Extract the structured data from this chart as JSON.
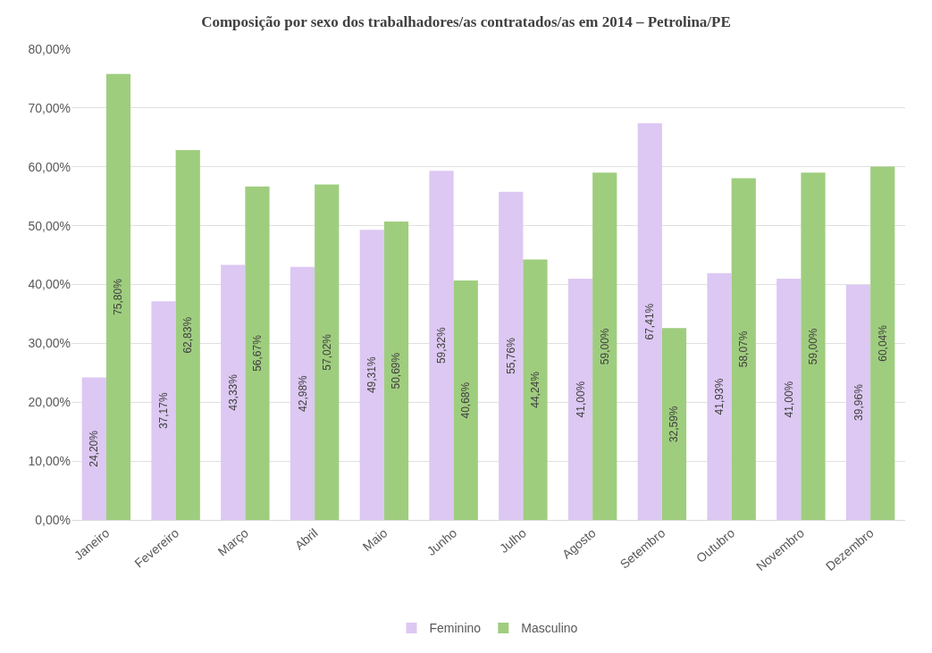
{
  "chart_data": {
    "type": "bar",
    "title": "Composição por sexo dos trabalhadores/as contratados/as em 2014 – Petrolina/PE",
    "categories": [
      "Janeiro",
      "Fevereiro",
      "Março",
      "Abril",
      "Maio",
      "Junho",
      "Julho",
      "Agosto",
      "Setembro",
      "Outubro",
      "Novembro",
      "Dezembro"
    ],
    "series": [
      {
        "name": "Feminino",
        "color": "#dcc8f2",
        "values": [
          24.2,
          37.17,
          43.33,
          42.98,
          49.31,
          59.32,
          55.76,
          41.0,
          67.41,
          41.93,
          41.0,
          39.96
        ],
        "value_labels": [
          "24,20%",
          "37,17%",
          "43,33%",
          "42,98%",
          "49,31%",
          "59,32%",
          "55,76%",
          "41,00%",
          "67,41%",
          "41,93%",
          "41,00%",
          "39,96%"
        ]
      },
      {
        "name": "Masculino",
        "color": "#9fcd7e",
        "values": [
          75.8,
          62.83,
          56.67,
          57.02,
          50.69,
          40.68,
          44.24,
          59.0,
          32.59,
          58.07,
          59.0,
          60.04
        ],
        "value_labels": [
          "75,80%",
          "62,83%",
          "56,67%",
          "57,02%",
          "50,69%",
          "40,68%",
          "44,24%",
          "59,00%",
          "32,59%",
          "58,07%",
          "59,00%",
          "60,04%"
        ]
      }
    ],
    "ylim": [
      0,
      80
    ],
    "yticks": [
      {
        "value": 0,
        "label": "0,00%"
      },
      {
        "value": 10,
        "label": "10,00%"
      },
      {
        "value": 20,
        "label": "20,00%"
      },
      {
        "value": 30,
        "label": "30,00%"
      },
      {
        "value": 40,
        "label": "40,00%"
      },
      {
        "value": 50,
        "label": "50,00%"
      },
      {
        "value": 60,
        "label": "60,00%"
      },
      {
        "value": 70,
        "label": "70,00%"
      },
      {
        "value": 80,
        "label": "80,00%"
      }
    ],
    "grid": "y",
    "legend": "bottom"
  }
}
